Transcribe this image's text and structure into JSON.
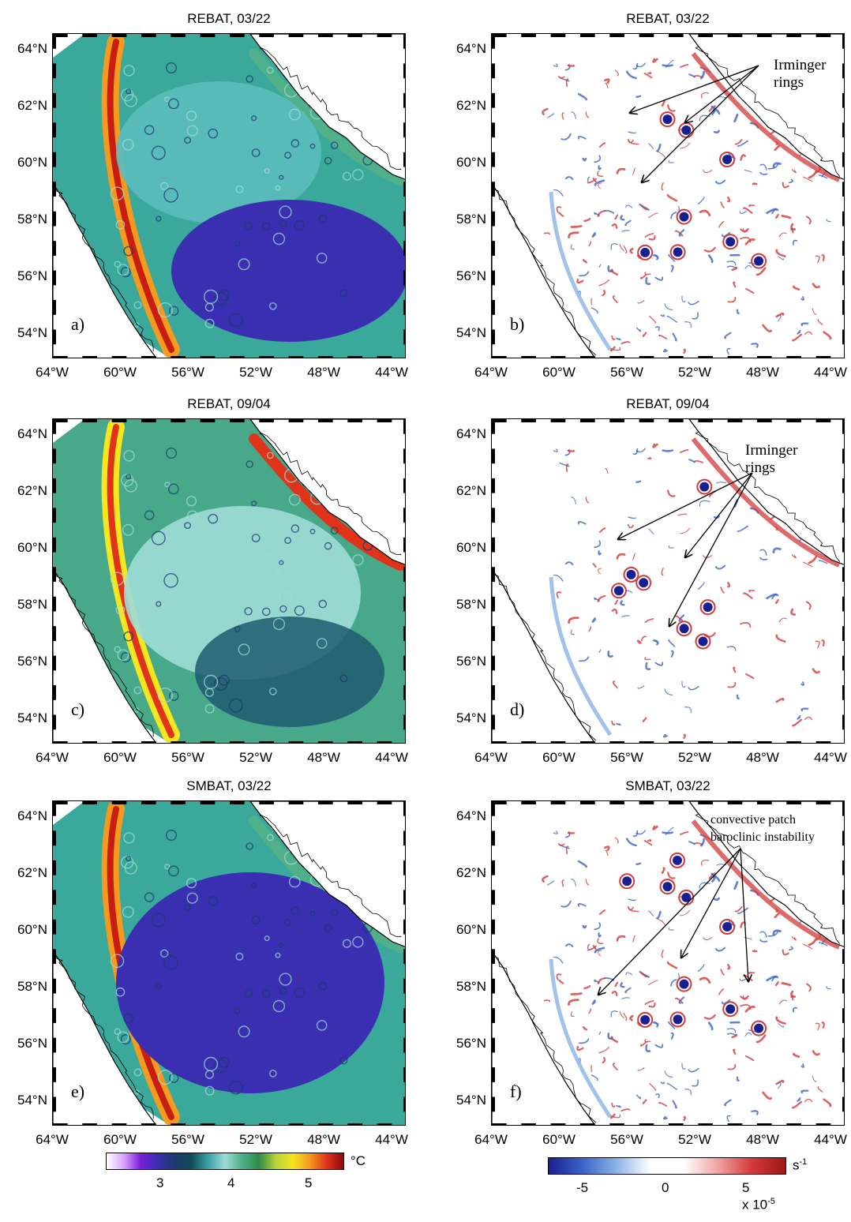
{
  "panels": [
    {
      "id": "a",
      "title": "REBAT, 03/22",
      "letter": "a)",
      "kind": "temp",
      "variant": "rebat_mar"
    },
    {
      "id": "b",
      "title": "REBAT, 03/22",
      "letter": "b)",
      "kind": "vort",
      "variant": "rebat_mar",
      "annotation": {
        "lines": [
          "Irminger",
          "rings"
        ]
      }
    },
    {
      "id": "c",
      "title": "REBAT, 09/04",
      "letter": "c)",
      "kind": "temp",
      "variant": "rebat_sep"
    },
    {
      "id": "d",
      "title": "REBAT, 09/04",
      "letter": "d)",
      "kind": "vort",
      "variant": "rebat_sep",
      "annotation": {
        "lines": [
          "Irminger",
          "rings"
        ]
      }
    },
    {
      "id": "e",
      "title": "SMBAT, 03/22",
      "letter": "e)",
      "kind": "temp",
      "variant": "smbat_mar"
    },
    {
      "id": "f",
      "title": "SMBAT, 03/22",
      "letter": "f)",
      "kind": "vort",
      "variant": "smbat_mar",
      "annotation": {
        "lines": [
          "convective patch",
          "baroclinic instability"
        ]
      }
    }
  ],
  "lat_labels": [
    "64°N",
    "62°N",
    "60°N",
    "58°N",
    "56°N",
    "54°N"
  ],
  "lon_labels": [
    "64°W",
    "60°W",
    "56°W",
    "52°W",
    "48°W",
    "44°W"
  ],
  "temp_colorbar": {
    "ticks": [
      "3",
      "4",
      "5"
    ],
    "unit": "°C",
    "colors": [
      "#ffffff",
      "#d9a6ff",
      "#7a1fd6",
      "#3a2fb0",
      "#1c3a6e",
      "#0f4a56",
      "#3aa0a8",
      "#9fdcd6",
      "#4fb08a",
      "#2f8a4a",
      "#b5d33a",
      "#f5e61e",
      "#f39a1f",
      "#e0331a",
      "#8a0a0a"
    ]
  },
  "vort_colorbar": {
    "ticks": [
      "-5",
      "0",
      "5"
    ],
    "unit": "s",
    "unit_exp": "-1",
    "scale": "x 10",
    "scale_exp": "-5",
    "colors": [
      "#1a1f8f",
      "#3a63c8",
      "#8ab4e6",
      "#ffffff",
      "#ffffff",
      "#f0a3a3",
      "#d33a3a",
      "#a01616"
    ]
  }
}
